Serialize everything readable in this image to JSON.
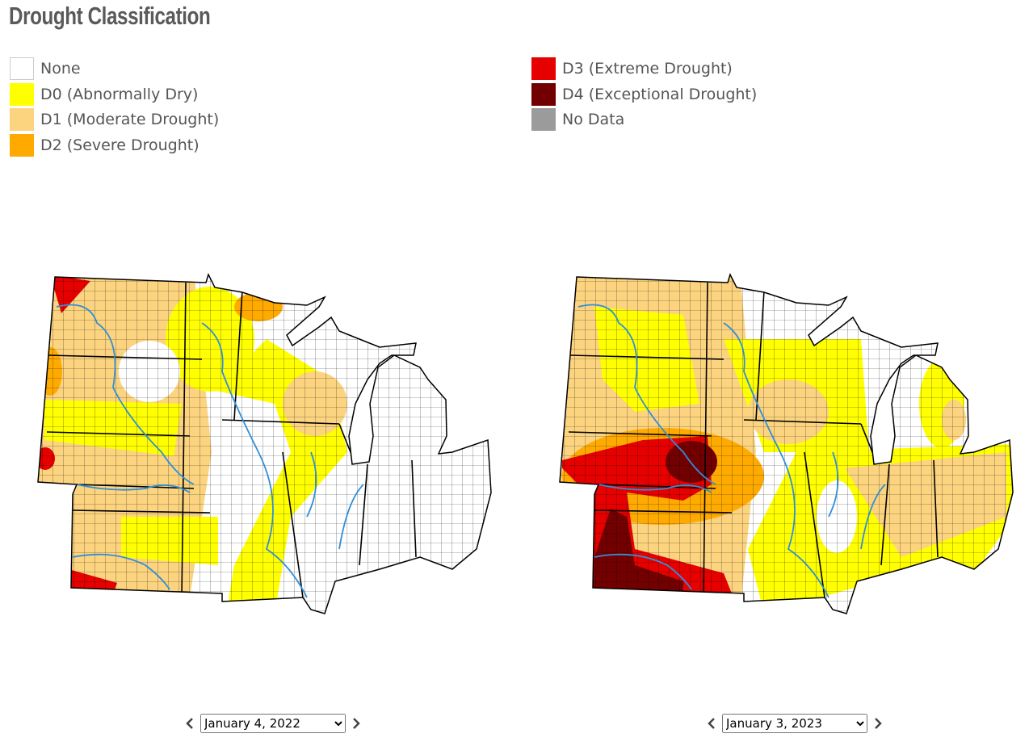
{
  "header": {
    "title": "Drought Classification"
  },
  "legend": [
    {
      "label": "None",
      "color": "#ffffff"
    },
    {
      "label": "D0 (Abnormally Dry)",
      "color": "#ffff00"
    },
    {
      "label": "D1 (Moderate Drought)",
      "color": "#fcd37f"
    },
    {
      "label": "D2 (Severe Drought)",
      "color": "#ffaa00"
    },
    {
      "label": "D3 (Extreme Drought)",
      "color": "#e60000"
    },
    {
      "label": "D4 (Exceptional Drought)",
      "color": "#730000"
    },
    {
      "label": "No Data",
      "color": "#9b9b9b"
    }
  ],
  "maps": [
    {
      "date": "January 4, 2022"
    },
    {
      "date": "January 3, 2023"
    }
  ]
}
